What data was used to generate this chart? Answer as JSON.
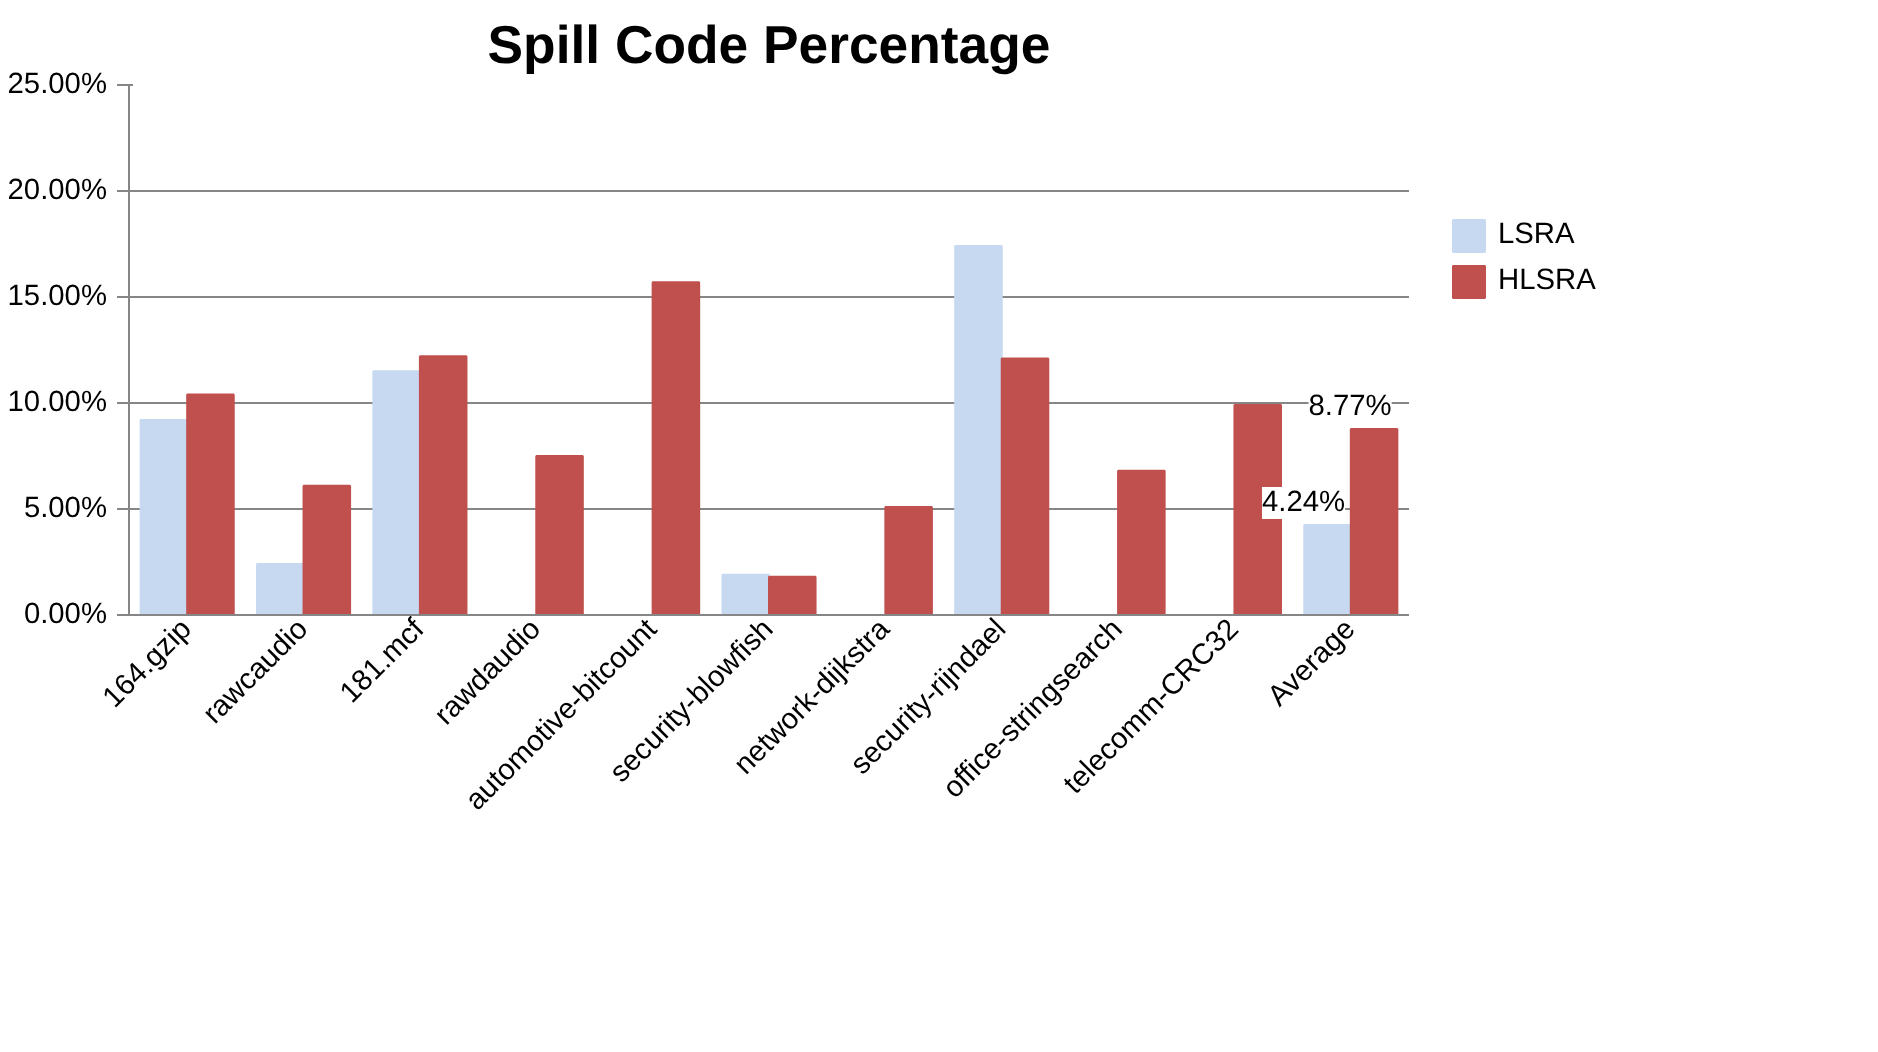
{
  "chart_data": {
    "type": "bar",
    "title": "Spill Code Percentage",
    "categories": [
      "164.gzip",
      "rawcaudio",
      "181.mcf",
      "rawdaudio",
      "automotive-bitcount",
      "security-blowfish",
      "network-dijkstra",
      "security-rijndael",
      "office-stringsearch",
      "telecomm-CRC32",
      "Average"
    ],
    "series": [
      {
        "name": "LSRA",
        "color": "#c6d9f1",
        "values": [
          9.2,
          2.4,
          11.5,
          0,
          0,
          1.9,
          0,
          17.4,
          0,
          0,
          4.24
        ],
        "value_labels": [
          null,
          null,
          null,
          null,
          null,
          null,
          null,
          null,
          null,
          null,
          "4.24%"
        ]
      },
      {
        "name": "HLSRA",
        "color": "#c0504d",
        "values": [
          10.4,
          6.1,
          12.2,
          7.5,
          15.7,
          1.8,
          5.1,
          12.1,
          6.8,
          9.9,
          8.77
        ],
        "value_labels": [
          null,
          null,
          null,
          null,
          null,
          null,
          null,
          null,
          null,
          null,
          "8.77%"
        ]
      }
    ],
    "ylim": [
      0,
      25
    ],
    "yticks": [
      {
        "value": 0,
        "label": "0.00%"
      },
      {
        "value": 5,
        "label": "5.00%"
      },
      {
        "value": 10,
        "label": "10.00%"
      },
      {
        "value": 15,
        "label": "15.00%"
      },
      {
        "value": 20,
        "label": "20.00%"
      },
      {
        "value": 25,
        "label": "25.00%"
      }
    ],
    "grid": "y",
    "legend": "right"
  }
}
